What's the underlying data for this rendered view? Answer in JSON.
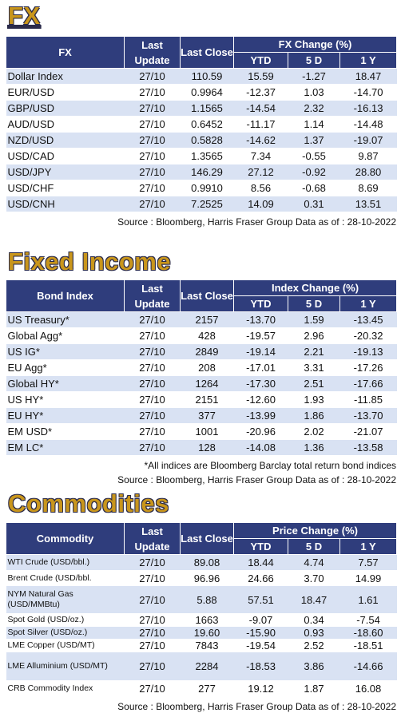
{
  "sections": [
    {
      "title": "FX",
      "header": {
        "name": "FX",
        "last_update": "Last Update",
        "last_close": "Last Close",
        "change": "FX Change (%)",
        "ytd": "YTD",
        "d5": "5 D",
        "y1": "1 Y"
      },
      "rows": [
        [
          "Dollar Index",
          "27/10",
          "110.59",
          "15.59",
          "-1.27",
          "18.47"
        ],
        [
          "EUR/USD",
          "27/10",
          "0.9964",
          "-12.37",
          "1.03",
          "-14.70"
        ],
        [
          "GBP/USD",
          "27/10",
          "1.1565",
          "-14.54",
          "2.32",
          "-16.13"
        ],
        [
          "AUD/USD",
          "27/10",
          "0.6452",
          "-11.17",
          "1.14",
          "-14.48"
        ],
        [
          "NZD/USD",
          "27/10",
          "0.5828",
          "-14.62",
          "1.37",
          "-19.07"
        ],
        [
          "USD/CAD",
          "27/10",
          "1.3565",
          "7.34",
          "-0.55",
          "9.87"
        ],
        [
          "USD/JPY",
          "27/10",
          "146.29",
          "27.12",
          "-0.92",
          "28.80"
        ],
        [
          "USD/CHF",
          "27/10",
          "0.9910",
          "8.56",
          "-0.68",
          "8.69"
        ],
        [
          "USD/CNH",
          "27/10",
          "7.2525",
          "14.09",
          "0.31",
          "13.51"
        ]
      ],
      "notes": [
        "Source : Bloomberg, Harris Fraser Group Data as of : 28-10-2022"
      ]
    },
    {
      "title": "Fixed Income",
      "header": {
        "name": "Bond Index",
        "last_update": "Last Update",
        "last_close": "Last Close",
        "change": "Index Change (%)",
        "ytd": "YTD",
        "d5": "5 D",
        "y1": "1 Y"
      },
      "rows": [
        [
          "US Treasury*",
          "27/10",
          "2157",
          "-13.70",
          "1.59",
          "-13.45"
        ],
        [
          "Global Agg*",
          "27/10",
          "428",
          "-19.57",
          "2.96",
          "-20.32"
        ],
        [
          "US IG*",
          "27/10",
          "2849",
          "-19.14",
          "2.21",
          "-19.13"
        ],
        [
          "EU Agg*",
          "27/10",
          "208",
          "-17.01",
          "3.31",
          "-17.26"
        ],
        [
          "Global HY*",
          "27/10",
          "1264",
          "-17.30",
          "2.51",
          "-17.66"
        ],
        [
          "US HY*",
          "27/10",
          "2151",
          "-12.60",
          "1.93",
          "-11.85"
        ],
        [
          "EU HY*",
          "27/10",
          "377",
          "-13.99",
          "1.86",
          "-13.70"
        ],
        [
          "EM USD*",
          "27/10",
          "1001",
          "-20.96",
          "2.02",
          "-21.07"
        ],
        [
          "EM LC*",
          "27/10",
          "128",
          "-14.08",
          "1.36",
          "-13.58"
        ]
      ],
      "notes": [
        "*All indices are Bloomberg Barclay total return bond indices",
        "Source : Bloomberg, Harris Fraser Group Data as of : 28-10-2022"
      ]
    },
    {
      "title": "Commodities",
      "header": {
        "name": "Commodity",
        "last_update": "Last Update",
        "last_close": "Last Close",
        "change": "Price Change (%)",
        "ytd": "YTD",
        "d5": "5 D",
        "y1": "1 Y"
      },
      "rows": [
        [
          "WTI Crude (USD/bbl.)",
          "27/10",
          "89.08",
          "18.44",
          "4.74",
          "7.57"
        ],
        [
          "Brent Crude (USD/bbl.",
          "27/10",
          "96.96",
          "24.66",
          "3.70",
          "14.99"
        ],
        [
          "NYM Natural Gas (USD/MMBtu)",
          "27/10",
          "5.88",
          "57.51",
          "18.47",
          "1.61"
        ],
        [
          "Spot Gold (USD/oz.)",
          "27/10",
          "1663",
          "-9.07",
          "0.34",
          "-7.54"
        ],
        [
          "Spot Silver  (USD/oz.)",
          "27/10",
          "19.60",
          "-15.90",
          "0.93",
          "-18.60"
        ],
        [
          "LME Copper  (USD/MT)",
          "27/10",
          "7843",
          "-19.54",
          "2.52",
          "-18.51"
        ],
        [
          "LME Alluminium (USD/MT)",
          "27/10",
          "2284",
          "-18.53",
          "3.86",
          "-14.66"
        ],
        [
          "CRB Commodity Index",
          "27/10",
          "277",
          "19.12",
          "1.87",
          "16.08"
        ]
      ],
      "notes": [
        "Source : Bloomberg, Harris Fraser Group Data as of : 28-10-2022"
      ]
    }
  ]
}
